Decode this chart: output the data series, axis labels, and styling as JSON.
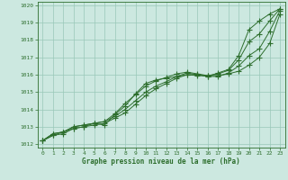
{
  "xlabel": "Graphe pression niveau de la mer (hPa)",
  "xlim": [
    -0.5,
    23.5
  ],
  "ylim": [
    1011.8,
    1020.2
  ],
  "yticks": [
    1012,
    1013,
    1014,
    1015,
    1016,
    1017,
    1018,
    1019,
    1020
  ],
  "xticks": [
    0,
    1,
    2,
    3,
    4,
    5,
    6,
    7,
    8,
    9,
    10,
    11,
    12,
    13,
    14,
    15,
    16,
    17,
    18,
    19,
    20,
    21,
    22,
    23
  ],
  "bg_color": "#cce8e0",
  "grid_color": "#99c8b8",
  "line_color": "#2d6e2d",
  "series": [
    [
      1012.2,
      1012.6,
      1012.7,
      1013.0,
      1013.1,
      1013.2,
      1013.1,
      1013.7,
      1014.2,
      1014.9,
      1015.5,
      1015.7,
      1015.8,
      1015.9,
      1016.1,
      1016.0,
      1015.9,
      1016.1,
      1016.3,
      1017.1,
      1018.6,
      1019.1,
      1019.5,
      1019.8
    ],
    [
      1012.2,
      1012.5,
      1012.7,
      1012.9,
      1013.0,
      1013.2,
      1013.3,
      1013.6,
      1014.0,
      1014.5,
      1015.0,
      1015.35,
      1015.6,
      1015.9,
      1016.0,
      1015.95,
      1015.95,
      1015.95,
      1016.05,
      1016.2,
      1016.55,
      1017.0,
      1017.8,
      1019.5
    ],
    [
      1012.2,
      1012.5,
      1012.6,
      1012.9,
      1013.0,
      1013.1,
      1013.2,
      1013.5,
      1013.8,
      1014.3,
      1014.8,
      1015.2,
      1015.5,
      1015.8,
      1016.0,
      1016.0,
      1015.9,
      1015.9,
      1016.1,
      1016.5,
      1017.1,
      1017.5,
      1018.5,
      1019.7
    ],
    [
      1012.2,
      1012.6,
      1012.7,
      1013.0,
      1013.1,
      1013.2,
      1013.3,
      1013.75,
      1014.35,
      1014.85,
      1015.35,
      1015.65,
      1015.85,
      1016.05,
      1016.15,
      1016.05,
      1015.95,
      1016.05,
      1016.25,
      1016.85,
      1017.9,
      1018.35,
      1019.1,
      1019.8
    ]
  ]
}
